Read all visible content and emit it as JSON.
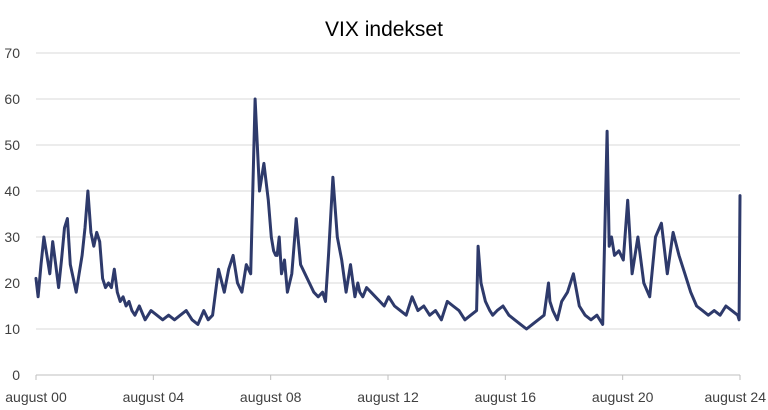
{
  "chart_data": {
    "type": "line",
    "title": "VIX indekset",
    "xlabel": "",
    "ylabel": "",
    "ylim": [
      0,
      70
    ],
    "yticks": [
      0,
      10,
      20,
      30,
      40,
      50,
      60,
      70
    ],
    "xlim": [
      2000.58,
      2024.58
    ],
    "xticks": [
      {
        "x": 2000.58,
        "label": "august 00"
      },
      {
        "x": 2004.58,
        "label": "august 04"
      },
      {
        "x": 2008.58,
        "label": "august 08"
      },
      {
        "x": 2012.58,
        "label": "august 12"
      },
      {
        "x": 2016.58,
        "label": "august 16"
      },
      {
        "x": 2020.58,
        "label": "august 20"
      },
      {
        "x": 2024.58,
        "label": "august 24"
      }
    ],
    "grid": "horizontal",
    "legend": "none",
    "series": [
      {
        "color": "#2e3a6b",
        "x": [
          2000.58,
          2000.65,
          2000.75,
          2000.85,
          2000.95,
          2001.05,
          2001.15,
          2001.25,
          2001.35,
          2001.45,
          2001.55,
          2001.65,
          2001.75,
          2001.85,
          2001.95,
          2002.05,
          2002.15,
          2002.25,
          2002.35,
          2002.45,
          2002.55,
          2002.65,
          2002.75,
          2002.85,
          2002.95,
          2003.05,
          2003.15,
          2003.25,
          2003.35,
          2003.45,
          2003.55,
          2003.65,
          2003.75,
          2003.85,
          2003.95,
          2004.1,
          2004.3,
          2004.5,
          2004.7,
          2004.9,
          2005.1,
          2005.3,
          2005.5,
          2005.7,
          2005.9,
          2006.1,
          2006.3,
          2006.45,
          2006.6,
          2006.8,
          2007.0,
          2007.15,
          2007.3,
          2007.45,
          2007.6,
          2007.75,
          2007.9,
          2008.05,
          2008.2,
          2008.35,
          2008.5,
          2008.6,
          2008.68,
          2008.75,
          2008.8,
          2008.87,
          2008.95,
          2009.05,
          2009.15,
          2009.3,
          2009.45,
          2009.6,
          2009.75,
          2009.9,
          2010.05,
          2010.2,
          2010.35,
          2010.45,
          2010.55,
          2010.7,
          2010.85,
          2011.0,
          2011.15,
          2011.3,
          2011.45,
          2011.55,
          2011.62,
          2011.72,
          2011.85,
          2012.0,
          2012.15,
          2012.3,
          2012.45,
          2012.6,
          2012.8,
          2013.0,
          2013.2,
          2013.4,
          2013.6,
          2013.8,
          2014.0,
          2014.2,
          2014.4,
          2014.6,
          2014.8,
          2015.0,
          2015.2,
          2015.4,
          2015.6,
          2015.65,
          2015.75,
          2015.9,
          2016.05,
          2016.15,
          2016.3,
          2016.5,
          2016.7,
          2016.9,
          2017.1,
          2017.3,
          2017.5,
          2017.7,
          2017.9,
          2018.05,
          2018.1,
          2018.2,
          2018.35,
          2018.5,
          2018.7,
          2018.9,
          2019.1,
          2019.3,
          2019.5,
          2019.7,
          2019.9,
          2020.05,
          2020.12,
          2020.2,
          2020.3,
          2020.45,
          2020.6,
          2020.75,
          2020.9,
          2021.1,
          2021.3,
          2021.5,
          2021.7,
          2021.9,
          2022.1,
          2022.3,
          2022.5,
          2022.7,
          2022.9,
          2023.1,
          2023.3,
          2023.5,
          2023.7,
          2023.9,
          2024.1,
          2024.3,
          2024.5,
          2024.55,
          2024.58
        ],
        "y": [
          21,
          17,
          24,
          30,
          26,
          22,
          29,
          24,
          19,
          25,
          32,
          34,
          24,
          21,
          18,
          22,
          26,
          32,
          40,
          31,
          28,
          31,
          29,
          21,
          19,
          20,
          19,
          23,
          18,
          16,
          17,
          15,
          16,
          14,
          13,
          15,
          12,
          14,
          13,
          12,
          13,
          12,
          13,
          14,
          12,
          11,
          14,
          12,
          13,
          23,
          18,
          23,
          26,
          20,
          18,
          24,
          22,
          60,
          40,
          46,
          38,
          30,
          27,
          26,
          26,
          30,
          22,
          25,
          18,
          22,
          34,
          24,
          22,
          20,
          18,
          17,
          18,
          16,
          26,
          43,
          30,
          25,
          18,
          24,
          17,
          20,
          18,
          17,
          19,
          18,
          17,
          16,
          15,
          17,
          15,
          14,
          13,
          17,
          14,
          15,
          13,
          14,
          12,
          16,
          15,
          14,
          12,
          13,
          14,
          28,
          20,
          16,
          14,
          13,
          14,
          15,
          13,
          12,
          11,
          10,
          11,
          12,
          13,
          20,
          16,
          14,
          12,
          16,
          18,
          22,
          15,
          13,
          12,
          13,
          11,
          53,
          28,
          30,
          26,
          27,
          25,
          38,
          22,
          30,
          20,
          17,
          30,
          33,
          22,
          31,
          26,
          22,
          18,
          15,
          14,
          13,
          14,
          13,
          15,
          14,
          13,
          12,
          39
        ]
      }
    ]
  }
}
